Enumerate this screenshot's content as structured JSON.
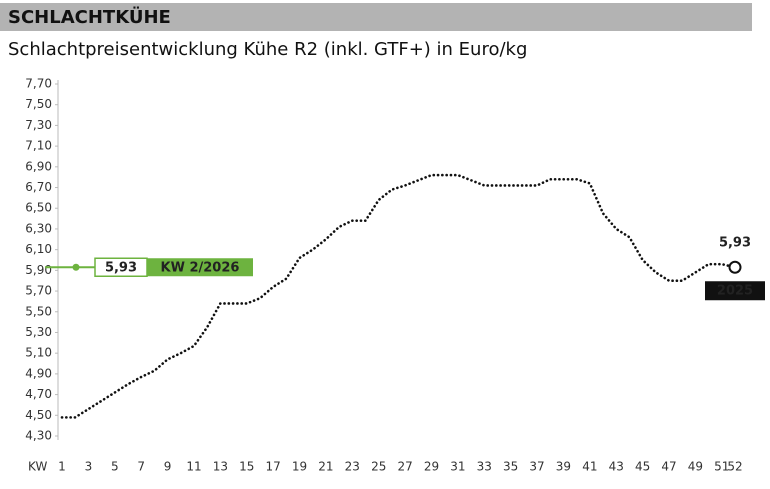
{
  "chart_data": {
    "type": "line",
    "title": "SCHLACHTKÜHE",
    "subtitle": "Schlachtpreisentwicklung Kühe R2 (inkl. GTF+) in Euro/kg",
    "x_label": "KW",
    "x": [
      1,
      2,
      3,
      4,
      5,
      6,
      7,
      8,
      9,
      10,
      11,
      12,
      13,
      14,
      15,
      16,
      17,
      18,
      19,
      20,
      21,
      22,
      23,
      24,
      25,
      26,
      27,
      28,
      29,
      30,
      31,
      32,
      33,
      34,
      35,
      36,
      37,
      38,
      39,
      40,
      41,
      42,
      43,
      44,
      45,
      46,
      47,
      48,
      49,
      50,
      51,
      52
    ],
    "series": [
      {
        "name": "2025",
        "color": "#111111",
        "values": [
          4.48,
          4.48,
          4.56,
          4.64,
          4.72,
          4.8,
          4.87,
          4.93,
          5.04,
          5.1,
          5.17,
          5.35,
          5.58,
          5.58,
          5.58,
          5.63,
          5.74,
          5.82,
          6.02,
          6.1,
          6.2,
          6.32,
          6.38,
          6.38,
          6.58,
          6.68,
          6.72,
          6.77,
          6.82,
          6.82,
          6.82,
          6.77,
          6.72,
          6.72,
          6.72,
          6.72,
          6.72,
          6.78,
          6.78,
          6.78,
          6.74,
          6.45,
          6.3,
          6.22,
          6.0,
          5.88,
          5.8,
          5.8,
          5.88,
          5.96,
          5.96,
          5.93
        ]
      }
    ],
    "end_label": "5,93",
    "current_value": 5.93,
    "current_value_label": "5,93",
    "current_week": "KW 2/2026",
    "current_color": "#6db33f",
    "xlim": [
      1,
      52
    ],
    "xticks": [
      1,
      3,
      5,
      7,
      9,
      11,
      13,
      15,
      17,
      19,
      21,
      23,
      25,
      27,
      29,
      31,
      33,
      35,
      37,
      39,
      41,
      43,
      45,
      47,
      49,
      51,
      52
    ],
    "ylim": [
      4.3,
      7.7
    ],
    "yticks": [
      {
        "value": 4.3,
        "label": "4,30"
      },
      {
        "value": 4.5,
        "label": "4,50"
      },
      {
        "value": 4.7,
        "label": "4,70"
      },
      {
        "value": 4.9,
        "label": "4,90"
      },
      {
        "value": 5.1,
        "label": "5,10"
      },
      {
        "value": 5.3,
        "label": "5,30"
      },
      {
        "value": 5.5,
        "label": "5,50"
      },
      {
        "value": 5.7,
        "label": "5,70"
      },
      {
        "value": 5.9,
        "label": "5,90"
      },
      {
        "value": 6.1,
        "label": "6,10"
      },
      {
        "value": 6.3,
        "label": "6,30"
      },
      {
        "value": 6.5,
        "label": "6,50"
      },
      {
        "value": 6.7,
        "label": "6,70"
      },
      {
        "value": 6.9,
        "label": "6,90"
      },
      {
        "value": 7.1,
        "label": "7,10"
      },
      {
        "value": 7.3,
        "label": "7,30"
      },
      {
        "value": 7.5,
        "label": "7,50"
      },
      {
        "value": 7.7,
        "label": "7,70"
      }
    ]
  }
}
